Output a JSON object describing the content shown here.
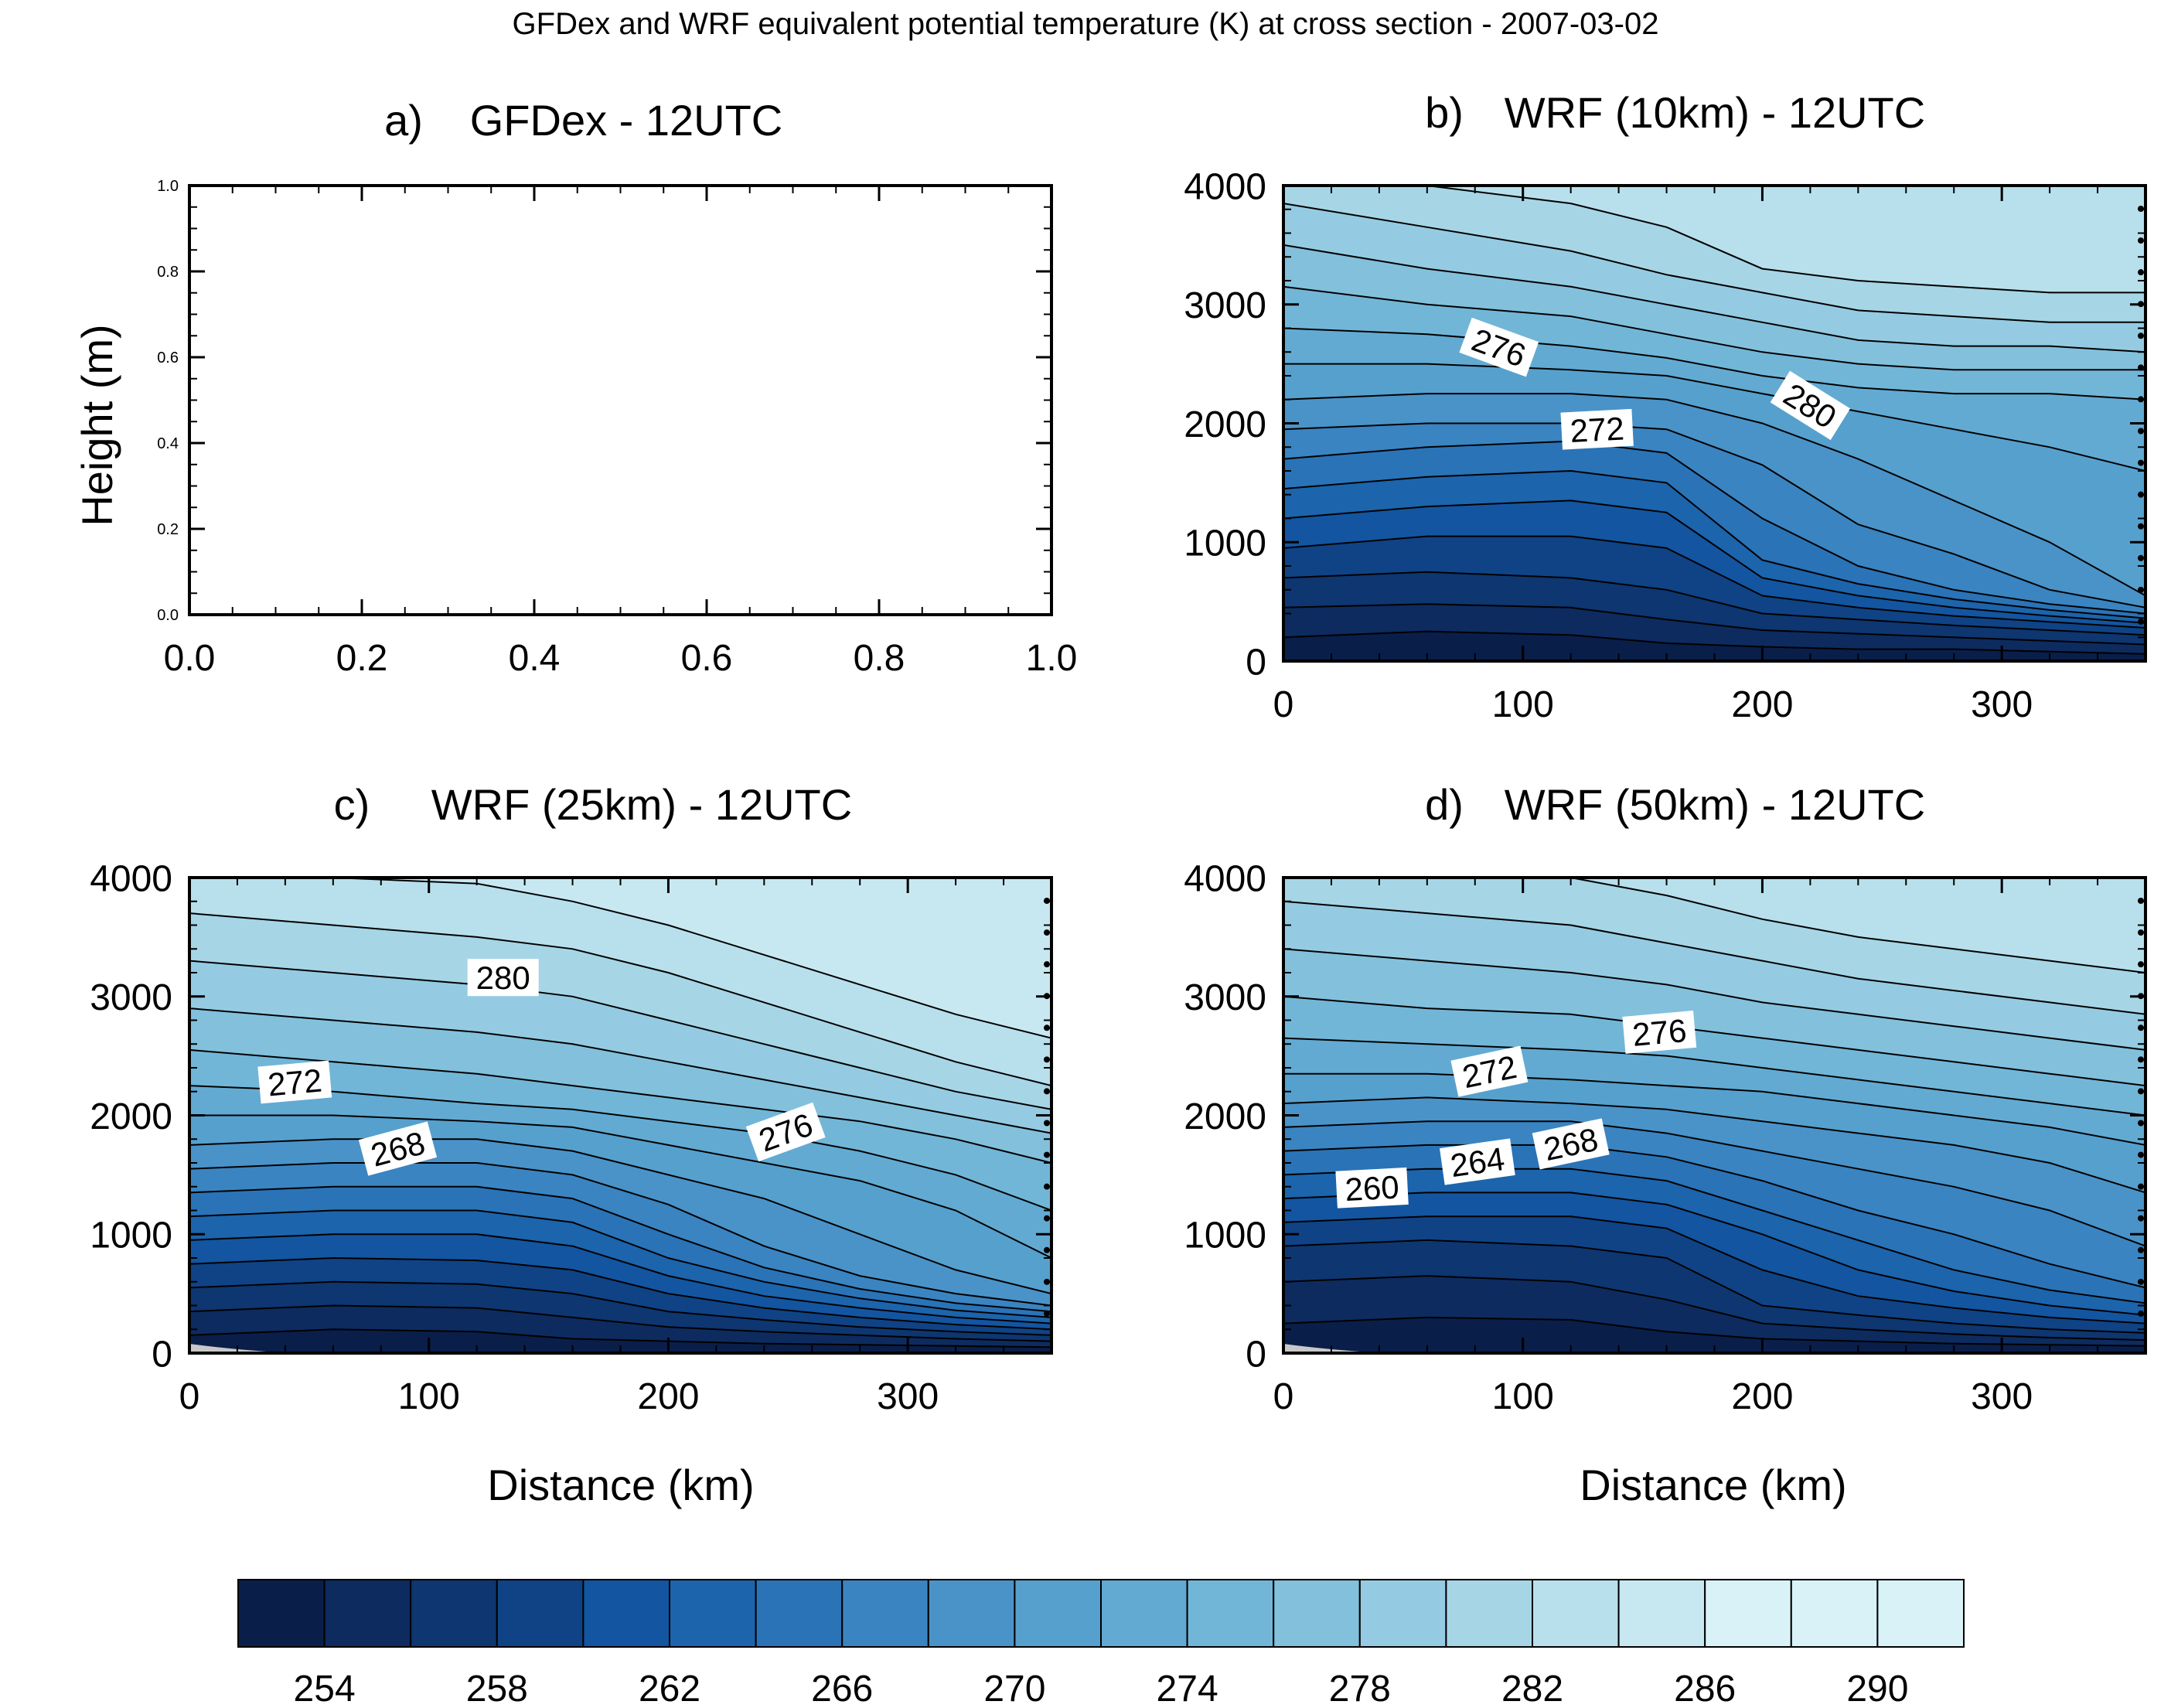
{
  "figure_title": "GFDex and WRF equivalent potential temperature (K) at cross section - 2007-03-02",
  "colors": {
    "levels": [
      "#0a1e4a",
      "#0d2b5e",
      "#0e3670",
      "#0f4385",
      "#1355a0",
      "#1c64ac",
      "#2a73b7",
      "#3a84c1",
      "#4a93c8",
      "#56a0cd",
      "#62aad2",
      "#72b6d7",
      "#83c0dc",
      "#95cbe2",
      "#a6d5e6",
      "#b8dfec",
      "#c8e8f1",
      "#d9f2f8"
    ],
    "missing": "#c8c8c8"
  },
  "chart_data": [
    {
      "type": "heatmap",
      "panel": "a)",
      "title": "GFDex - 12UTC",
      "ylabel": "Height (m)",
      "xlim": [
        0,
        1
      ],
      "ylim": [
        0,
        1
      ],
      "x_ticks": [
        "0.0",
        "0.2",
        "0.4",
        "0.6",
        "0.8",
        "1.0"
      ],
      "y_ticks": [
        "0.0",
        "0.2",
        "0.4",
        "0.6",
        "0.8",
        "1.0"
      ],
      "empty": true
    },
    {
      "type": "heatmap",
      "panel": "b)",
      "title": "WRF (10km) - 12UTC",
      "xlim": [
        0,
        360
      ],
      "ylim": [
        0,
        4000
      ],
      "x_ticks": [
        "0",
        "100",
        "200",
        "300"
      ],
      "y_ticks": [
        "0",
        "1000",
        "2000",
        "3000",
        "4000"
      ],
      "x_knots": [
        0,
        60,
        120,
        160,
        200,
        240,
        280,
        320,
        360
      ],
      "level_boundaries": [
        [
          200,
          250,
          220,
          150,
          120,
          100,
          100,
          80,
          60
        ],
        [
          450,
          480,
          450,
          350,
          260,
          230,
          200,
          170,
          140
        ],
        [
          700,
          750,
          700,
          600,
          400,
          350,
          300,
          260,
          220
        ],
        [
          950,
          1050,
          1050,
          950,
          550,
          450,
          380,
          330,
          280
        ],
        [
          1200,
          1300,
          1350,
          1250,
          700,
          550,
          450,
          380,
          320
        ],
        [
          1450,
          1550,
          1600,
          1500,
          850,
          650,
          520,
          430,
          360
        ],
        [
          1700,
          1800,
          1850,
          1750,
          1200,
          800,
          600,
          480,
          400
        ],
        [
          1950,
          2000,
          2000,
          1950,
          1650,
          1150,
          900,
          600,
          450
        ],
        [
          2200,
          2250,
          2250,
          2200,
          2000,
          1700,
          1350,
          1000,
          550
        ],
        [
          2500,
          2500,
          2450,
          2400,
          2250,
          2100,
          1950,
          1800,
          1600
        ],
        [
          2800,
          2750,
          2650,
          2550,
          2400,
          2300,
          2250,
          2250,
          2200
        ],
        [
          3150,
          3000,
          2900,
          2750,
          2600,
          2500,
          2450,
          2450,
          2450
        ],
        [
          3500,
          3300,
          3150,
          3000,
          2850,
          2700,
          2650,
          2650,
          2600
        ],
        [
          3850,
          3650,
          3450,
          3250,
          3100,
          2950,
          2900,
          2850,
          2850
        ],
        [
          4000,
          4000,
          3850,
          3650,
          3300,
          3200,
          3150,
          3100,
          3100
        ]
      ],
      "contour_labels": [
        {
          "text": "276",
          "x": 90,
          "y": 2640,
          "angle": 20
        },
        {
          "text": "272",
          "x": 131,
          "y": 1950,
          "angle": -3
        },
        {
          "text": "280",
          "x": 220,
          "y": 2150,
          "angle": 32
        }
      ]
    },
    {
      "type": "heatmap",
      "panel": "c)",
      "title": "WRF (25km) - 12UTC",
      "xlim": [
        0,
        360
      ],
      "ylim": [
        0,
        4000
      ],
      "x_ticks": [
        "0",
        "100",
        "200",
        "300"
      ],
      "y_ticks": [
        "0",
        "1000",
        "2000",
        "3000",
        "4000"
      ],
      "x_knots": [
        0,
        60,
        120,
        160,
        200,
        240,
        280,
        320,
        360
      ],
      "level_boundaries": [
        [
          150,
          200,
          180,
          120,
          100,
          80,
          70,
          60,
          50
        ],
        [
          350,
          400,
          380,
          300,
          220,
          180,
          150,
          120,
          100
        ],
        [
          550,
          600,
          580,
          500,
          350,
          280,
          220,
          180,
          150
        ],
        [
          750,
          800,
          780,
          700,
          500,
          380,
          300,
          240,
          200
        ],
        [
          950,
          1000,
          1000,
          900,
          650,
          480,
          380,
          300,
          250
        ],
        [
          1150,
          1200,
          1200,
          1100,
          800,
          600,
          460,
          360,
          300
        ],
        [
          1350,
          1400,
          1400,
          1300,
          1000,
          720,
          540,
          420,
          350
        ],
        [
          1550,
          1600,
          1600,
          1500,
          1250,
          900,
          650,
          500,
          400
        ],
        [
          1750,
          1800,
          1800,
          1700,
          1500,
          1300,
          1000,
          700,
          500
        ],
        [
          2000,
          2000,
          1950,
          1900,
          1750,
          1600,
          1450,
          1200,
          800
        ],
        [
          2250,
          2200,
          2100,
          2050,
          1950,
          1850,
          1700,
          1500,
          1200
        ],
        [
          2550,
          2450,
          2350,
          2250,
          2150,
          2050,
          1950,
          1800,
          1600
        ],
        [
          2900,
          2800,
          2700,
          2600,
          2450,
          2300,
          2150,
          2000,
          1850
        ],
        [
          3300,
          3200,
          3100,
          3000,
          2800,
          2600,
          2400,
          2200,
          2050
        ],
        [
          3700,
          3600,
          3500,
          3400,
          3200,
          2950,
          2700,
          2450,
          2250
        ],
        [
          4000,
          4000,
          3950,
          3800,
          3600,
          3350,
          3100,
          2850,
          2650
        ]
      ],
      "contour_labels": [
        {
          "text": "280",
          "x": 131,
          "y": 3160,
          "angle": 0
        },
        {
          "text": "272",
          "x": 44,
          "y": 2280,
          "angle": -5
        },
        {
          "text": "268",
          "x": 87,
          "y": 1720,
          "angle": -15
        },
        {
          "text": "276",
          "x": 249,
          "y": 1860,
          "angle": -20
        }
      ]
    },
    {
      "type": "heatmap",
      "panel": "d)",
      "title": "WRF (50km) - 12UTC",
      "xlim": [
        0,
        360
      ],
      "ylim": [
        0,
        4000
      ],
      "x_ticks": [
        "0",
        "100",
        "200",
        "300"
      ],
      "y_ticks": [
        "0",
        "1000",
        "2000",
        "3000",
        "4000"
      ],
      "x_knots": [
        0,
        60,
        120,
        160,
        200,
        240,
        280,
        320,
        360
      ],
      "level_boundaries": [
        [
          250,
          300,
          280,
          180,
          120,
          100,
          80,
          70,
          60
        ],
        [
          600,
          650,
          600,
          450,
          250,
          200,
          160,
          130,
          110
        ],
        [
          900,
          950,
          900,
          800,
          400,
          320,
          250,
          200,
          170
        ],
        [
          1100,
          1150,
          1150,
          1050,
          700,
          480,
          380,
          300,
          250
        ],
        [
          1300,
          1350,
          1350,
          1250,
          1000,
          700,
          520,
          400,
          320
        ],
        [
          1500,
          1550,
          1550,
          1450,
          1200,
          950,
          700,
          530,
          420
        ],
        [
          1700,
          1750,
          1750,
          1650,
          1450,
          1200,
          1000,
          750,
          550
        ],
        [
          1900,
          1950,
          1950,
          1850,
          1700,
          1550,
          1400,
          1200,
          900
        ],
        [
          2100,
          2150,
          2100,
          2050,
          1950,
          1850,
          1750,
          1600,
          1350
        ],
        [
          2350,
          2350,
          2300,
          2250,
          2200,
          2100,
          2000,
          1900,
          1750
        ],
        [
          2650,
          2600,
          2550,
          2500,
          2400,
          2300,
          2200,
          2100,
          2000
        ],
        [
          3000,
          2900,
          2850,
          2750,
          2650,
          2550,
          2450,
          2350,
          2250
        ],
        [
          3400,
          3300,
          3200,
          3100,
          2950,
          2850,
          2750,
          2650,
          2550
        ],
        [
          3800,
          3700,
          3600,
          3450,
          3300,
          3150,
          3050,
          2950,
          2850
        ],
        [
          4000,
          4000,
          4000,
          3850,
          3650,
          3500,
          3400,
          3300,
          3200
        ]
      ],
      "contour_labels": [
        {
          "text": "276",
          "x": 157,
          "y": 2700,
          "angle": -5
        },
        {
          "text": "272",
          "x": 86,
          "y": 2370,
          "angle": -12
        },
        {
          "text": "268",
          "x": 120,
          "y": 1760,
          "angle": -12
        },
        {
          "text": "264",
          "x": 81,
          "y": 1610,
          "angle": -8
        },
        {
          "text": "260",
          "x": 37,
          "y": 1390,
          "angle": -3
        }
      ]
    }
  ],
  "colorbar": {
    "labels": [
      "254",
      "258",
      "262",
      "266",
      "270",
      "274",
      "278",
      "282",
      "286",
      "290"
    ],
    "n_boxes": 20
  }
}
